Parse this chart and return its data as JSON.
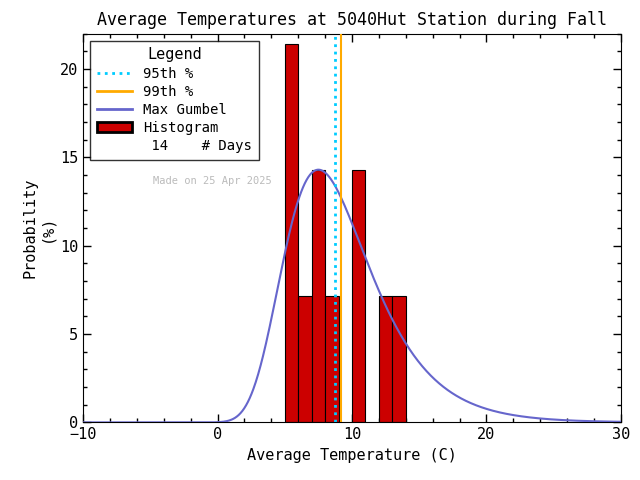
{
  "title": "Average Temperatures at 5040Hut Station during Fall",
  "xlabel": "Average Temperature (C)",
  "ylabel_top": "Probability",
  "ylabel_bot": "(%)",
  "xlim": [
    -10,
    30
  ],
  "ylim": [
    0,
    22
  ],
  "yticks": [
    0,
    5,
    10,
    15,
    20
  ],
  "xticks": [
    -10,
    0,
    10,
    20,
    30
  ],
  "bar_edges": [
    5,
    6,
    7,
    8,
    9,
    10,
    11,
    12,
    13,
    14,
    15,
    16,
    17,
    18
  ],
  "bar_heights": [
    21.43,
    7.14,
    14.29,
    7.14,
    0.0,
    14.29,
    0.0,
    7.14,
    7.14,
    0.0,
    0.0,
    0.0,
    0.0,
    0.0
  ],
  "bar_color": "#cc0000",
  "bar_edge_color": "#000000",
  "gumbel_color": "#6666cc",
  "pct95_color": "#00ccff",
  "pct99_color": "#ffaa00",
  "gumbel_mu": 7.5,
  "gumbel_beta": 3.2,
  "pct95_x": 8.7,
  "pct99_x": 9.2,
  "n_days": 14,
  "watermark": "Made on 25 Apr 2025",
  "watermark_color": "#bbbbbb",
  "background_color": "#ffffff",
  "title_fontsize": 12,
  "axis_fontsize": 11,
  "legend_fontsize": 10
}
